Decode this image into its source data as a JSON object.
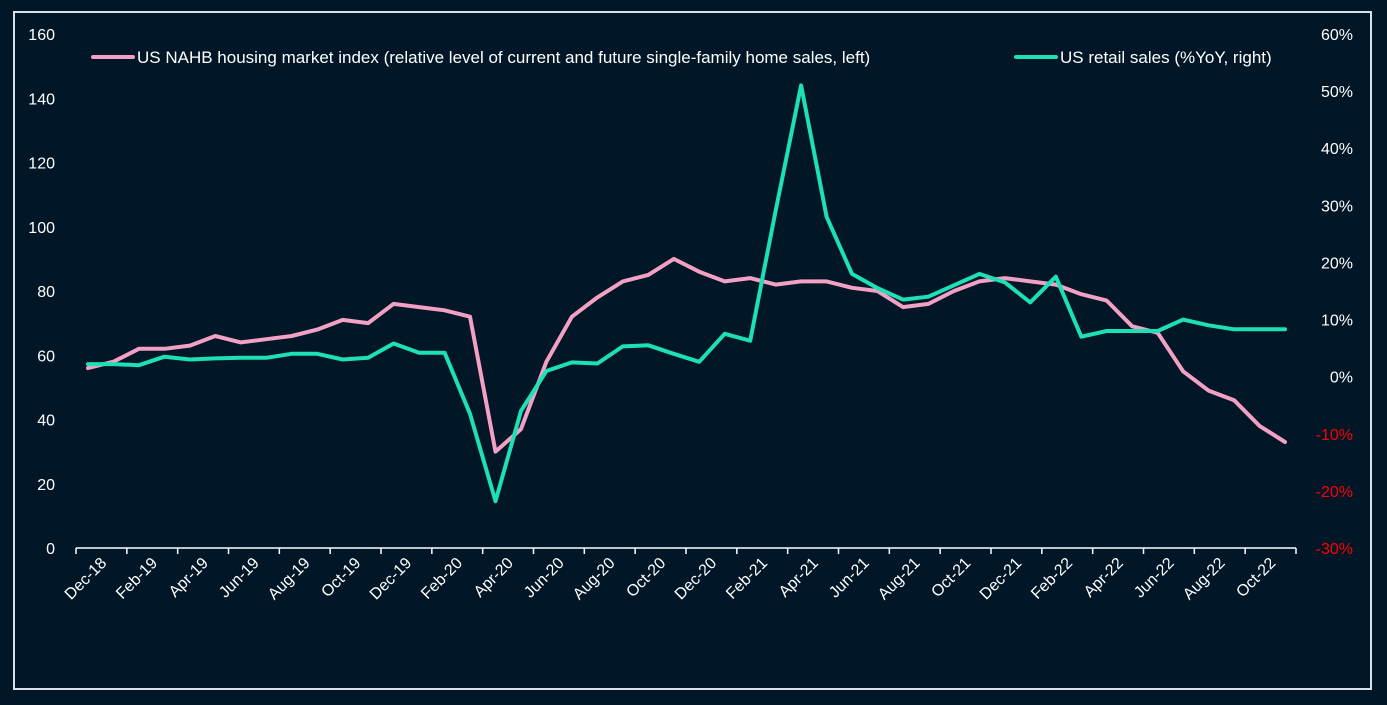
{
  "chart_data": {
    "type": "line",
    "x_tick_labels": [
      "Dec-18",
      "Feb-19",
      "Apr-19",
      "Jun-19",
      "Aug-19",
      "Oct-19",
      "Dec-19",
      "Feb-20",
      "Apr-20",
      "Jun-20",
      "Aug-20",
      "Oct-20",
      "Dec-20",
      "Feb-21",
      "Apr-21",
      "Jun-21",
      "Aug-21",
      "Oct-21",
      "Dec-21",
      "Feb-22",
      "Apr-22",
      "Jun-22",
      "Aug-22",
      "Oct-22"
    ],
    "y_left_ticks": [
      "0",
      "20",
      "40",
      "60",
      "80",
      "100",
      "120",
      "140",
      "160"
    ],
    "y_right_ticks": [
      "-30%",
      "-20%",
      "-10%",
      "0%",
      "10%",
      "20%",
      "30%",
      "40%",
      "50%",
      "60%"
    ],
    "ylim_left": [
      0,
      160
    ],
    "ylim_right": [
      -30,
      60
    ],
    "legend_position": "top",
    "series": [
      {
        "name": "US NAHB housing market index (relative level of current and future single-family home sales, left)",
        "axis": "left",
        "color": "#f2a0c4",
        "values": [
          56,
          58,
          62,
          62,
          63,
          66,
          64,
          65,
          66,
          68,
          71,
          70,
          76,
          75,
          74,
          72,
          30,
          37,
          58,
          72,
          78,
          83,
          85,
          90,
          86,
          83,
          84,
          82,
          83,
          83,
          81,
          80,
          75,
          76,
          80,
          83,
          84,
          83,
          82,
          79,
          77,
          69,
          67,
          55,
          49,
          46,
          38,
          33
        ]
      },
      {
        "name": "US retail sales (%YoY, right)",
        "axis": "right",
        "color": "#1de0b6",
        "values": [
          2.2,
          2.2,
          2.0,
          3.5,
          3.0,
          3.2,
          3.3,
          3.3,
          4.0,
          4.0,
          3.0,
          3.3,
          5.8,
          4.2,
          4.2,
          -6.5,
          -21.8,
          -6.0,
          1.0,
          2.5,
          2.3,
          5.3,
          5.5,
          4.0,
          2.6,
          7.5,
          6.3,
          29.0,
          51.0,
          28.0,
          18.0,
          15.5,
          13.5,
          14.0,
          16.0,
          18.0,
          16.5,
          13.0,
          17.5,
          7.0,
          8.0,
          8.0,
          8.0,
          10.0,
          9.0,
          8.3,
          8.3,
          8.3
        ]
      }
    ]
  }
}
